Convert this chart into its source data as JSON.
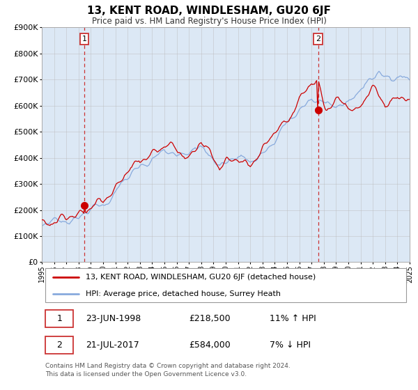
{
  "title": "13, KENT ROAD, WINDLESHAM, GU20 6JF",
  "subtitle": "Price paid vs. HM Land Registry's House Price Index (HPI)",
  "legend_line1": "13, KENT ROAD, WINDLESHAM, GU20 6JF (detached house)",
  "legend_line2": "HPI: Average price, detached house, Surrey Heath",
  "annotation1_label": "1",
  "annotation1_date": "23-JUN-1998",
  "annotation1_price": "£218,500",
  "annotation1_hpi": "11% ↑ HPI",
  "annotation2_label": "2",
  "annotation2_date": "21-JUL-2017",
  "annotation2_price": "£584,000",
  "annotation2_hpi": "7% ↓ HPI",
  "footer": "Contains HM Land Registry data © Crown copyright and database right 2024.\nThis data is licensed under the Open Government Licence v3.0.",
  "year_start": 1995,
  "year_end": 2025,
  "ylim": [
    0,
    900000
  ],
  "yticks": [
    0,
    100000,
    200000,
    300000,
    400000,
    500000,
    600000,
    700000,
    800000,
    900000
  ],
  "sale1_year": 1998.47,
  "sale1_value": 218500,
  "sale2_year": 2017.54,
  "sale2_value": 584000,
  "plot_bg_color": "#dce8f5",
  "red_line_color": "#cc0000",
  "blue_line_color": "#88aadd",
  "dashed_line_color": "#cc3333",
  "marker_color": "#cc0000",
  "grid_color": "#bbbbbb",
  "annotation_box_color": "#cc3333"
}
